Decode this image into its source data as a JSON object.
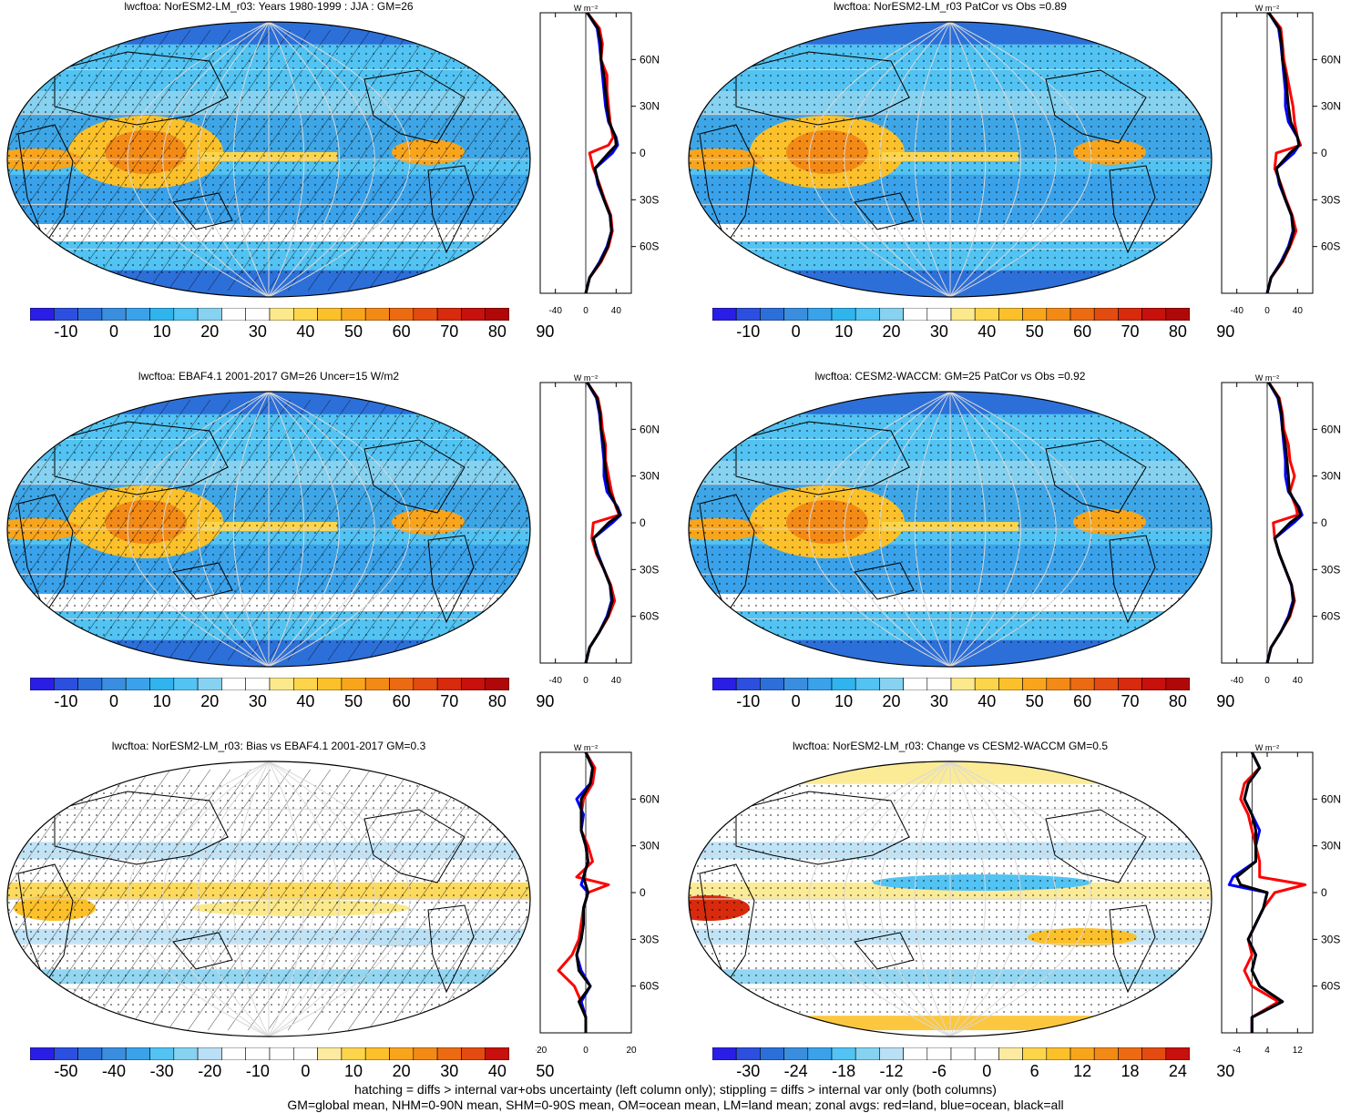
{
  "footer": {
    "line1": "hatching = diffs > internal var+obs uncertainty (left column only); stippling = diffs > internal var only (both columns)",
    "line2": "GM=global mean, NHM=0-90N mean, SHM=0-90S mean, OM=ocean mean, LM=land mean; zonal avgs: red=land, blue=ocean, black=all"
  },
  "panels": [
    {
      "title": "lwcftoa: NorESM2-LM_r03: Years 1980-1999 : JJA : GM=26",
      "kind": "abs",
      "colorbar": {
        "labels": [
          "-10",
          "0",
          "10",
          "20",
          "30",
          "40",
          "50",
          "60",
          "70",
          "80",
          "90"
        ]
      },
      "zonal": {
        "units": "W m⁻²",
        "xticks": [
          "-40",
          "0",
          "40"
        ],
        "xlim": [
          -60,
          60
        ],
        "lat_labels": [
          "60N",
          "30N",
          "0",
          "30S",
          "60S"
        ]
      }
    },
    {
      "title": "lwcftoa: NorESM2-LM_r03 PatCor vs Obs =0.89",
      "kind": "abs",
      "colorbar": {
        "labels": [
          "-10",
          "0",
          "10",
          "20",
          "30",
          "40",
          "50",
          "60",
          "70",
          "80",
          "90"
        ]
      },
      "zonal": {
        "units": "W m⁻²",
        "xticks": [
          "-40",
          "0",
          "40"
        ],
        "xlim": [
          -60,
          60
        ],
        "lat_labels": [
          "60N",
          "30N",
          "0",
          "30S",
          "60S"
        ]
      }
    },
    {
      "title": "lwcftoa: EBAF4.1 2001-2017 GM=26 Uncer=15 W/m2",
      "kind": "abs",
      "colorbar": {
        "labels": [
          "-10",
          "0",
          "10",
          "20",
          "30",
          "40",
          "50",
          "60",
          "70",
          "80",
          "90"
        ]
      },
      "zonal": {
        "units": "W m⁻²",
        "xticks": [
          "-40",
          "0",
          "40"
        ],
        "xlim": [
          -60,
          60
        ],
        "lat_labels": [
          "60N",
          "30N",
          "0",
          "30S",
          "60S"
        ]
      }
    },
    {
      "title": "lwcftoa: CESM2-WACCM: GM=25 PatCor vs Obs =0.92",
      "kind": "abs",
      "colorbar": {
        "labels": [
          "-10",
          "0",
          "10",
          "20",
          "30",
          "40",
          "50",
          "60",
          "70",
          "80",
          "90"
        ]
      },
      "zonal": {
        "units": "W m⁻²",
        "xticks": [
          "-40",
          "0",
          "40"
        ],
        "xlim": [
          -60,
          60
        ],
        "lat_labels": [
          "60N",
          "30N",
          "0",
          "30S",
          "60S"
        ]
      }
    },
    {
      "title": "lwcftoa: NorESM2-LM_r03: Bias vs EBAF4.1 2001-2017 GM=0.3",
      "kind": "diff",
      "colorbar": {
        "labels": [
          "-50",
          "-40",
          "-30",
          "-20",
          "-10",
          "0",
          "10",
          "20",
          "30",
          "40",
          "50"
        ]
      },
      "zonal": {
        "units": "W m⁻²",
        "xticks": [
          "-20",
          "0",
          "20"
        ],
        "xlim": [
          -20,
          20
        ],
        "lat_labels": [
          "60N",
          "30N",
          "0",
          "30S",
          "60S"
        ]
      }
    },
    {
      "title": "lwcftoa: NorESM2-LM_r03: Change vs CESM2-WACCM GM=0.5",
      "kind": "diff",
      "colorbar": {
        "labels": [
          "-30",
          "-24",
          "-18",
          "-12",
          "-6",
          "0",
          "6",
          "12",
          "18",
          "24",
          "30"
        ]
      },
      "zonal": {
        "units": "W m⁻²",
        "xticks": [
          "-4",
          "4",
          "12"
        ],
        "xlim": [
          -8,
          16
        ],
        "lat_labels": [
          "60N",
          "30N",
          "0",
          "30S",
          "60S"
        ]
      }
    }
  ],
  "chart_data": [
    {
      "type": "map+line",
      "title": "lwcftoa: NorESM2-LM_r03: Years 1980-1999 : JJA : GM=26",
      "zonal_lat": [
        90,
        80,
        70,
        60,
        50,
        40,
        30,
        20,
        10,
        5,
        0,
        -10,
        -20,
        -30,
        -40,
        -50,
        -60,
        -70,
        -80,
        -90
      ],
      "series": [
        {
          "name": "land",
          "color": "#ff0000",
          "values": [
            2,
            18,
            22,
            20,
            28,
            28,
            30,
            32,
            36,
            30,
            5,
            10,
            18,
            25,
            33,
            35,
            30,
            20,
            5,
            0
          ]
        },
        {
          "name": "ocean",
          "color": "#0000ff",
          "values": [
            2,
            15,
            18,
            20,
            22,
            24,
            26,
            30,
            40,
            42,
            35,
            12,
            16,
            24,
            32,
            34,
            28,
            18,
            5,
            0
          ]
        },
        {
          "name": "all",
          "color": "#000000",
          "values": [
            2,
            16,
            20,
            20,
            24,
            26,
            28,
            31,
            39,
            40,
            30,
            12,
            17,
            24,
            32,
            34,
            29,
            19,
            5,
            0
          ]
        }
      ],
      "colorbar_range": [
        -15,
        95
      ]
    },
    {
      "type": "map+line",
      "title": "lwcftoa: NorESM2-LM_r03 PatCor vs Obs =0.89",
      "zonal_lat": [
        90,
        80,
        70,
        60,
        50,
        40,
        30,
        20,
        10,
        5,
        0,
        -10,
        -20,
        -30,
        -40,
        -50,
        -60,
        -70,
        -80,
        -90
      ],
      "series": [
        {
          "name": "land",
          "color": "#ff0000",
          "values": [
            2,
            18,
            20,
            22,
            26,
            30,
            34,
            36,
            40,
            44,
            12,
            10,
            18,
            25,
            33,
            38,
            30,
            20,
            5,
            0
          ]
        },
        {
          "name": "ocean",
          "color": "#0000ff",
          "values": [
            2,
            15,
            18,
            20,
            22,
            24,
            24,
            28,
            40,
            42,
            35,
            12,
            16,
            24,
            32,
            34,
            28,
            18,
            5,
            0
          ]
        },
        {
          "name": "all",
          "color": "#000000",
          "values": [
            2,
            16,
            19,
            20,
            24,
            26,
            28,
            31,
            40,
            42,
            30,
            12,
            17,
            24,
            32,
            35,
            29,
            19,
            5,
            0
          ]
        }
      ],
      "colorbar_range": [
        -15,
        95
      ]
    },
    {
      "type": "map+line",
      "title": "lwcftoa: EBAF4.1 2001-2017 GM=26 Uncer=15 W/m2",
      "zonal_lat": [
        90,
        80,
        70,
        60,
        50,
        40,
        30,
        20,
        10,
        5,
        0,
        -10,
        -20,
        -30,
        -40,
        -50,
        -60,
        -70,
        -80,
        -90
      ],
      "series": [
        {
          "name": "land",
          "color": "#ff0000",
          "values": [
            2,
            16,
            20,
            22,
            26,
            26,
            30,
            34,
            40,
            44,
            10,
            8,
            14,
            24,
            33,
            38,
            30,
            18,
            5,
            0
          ]
        },
        {
          "name": "ocean",
          "color": "#0000ff",
          "values": [
            2,
            14,
            18,
            20,
            22,
            24,
            24,
            28,
            42,
            46,
            35,
            10,
            16,
            24,
            32,
            34,
            28,
            18,
            5,
            0
          ]
        },
        {
          "name": "all",
          "color": "#000000",
          "values": [
            2,
            15,
            19,
            20,
            24,
            25,
            27,
            31,
            41,
            45,
            30,
            10,
            15,
            24,
            32,
            35,
            29,
            18,
            5,
            0
          ]
        }
      ],
      "colorbar_range": [
        -15,
        95
      ]
    },
    {
      "type": "map+line",
      "title": "lwcftoa: CESM2-WACCM: GM=25 PatCor vs Obs =0.92",
      "zonal_lat": [
        90,
        80,
        70,
        60,
        50,
        40,
        30,
        20,
        10,
        5,
        0,
        -10,
        -20,
        -30,
        -40,
        -50,
        -60,
        -70,
        -80,
        -90
      ],
      "series": [
        {
          "name": "land",
          "color": "#ff0000",
          "values": [
            2,
            16,
            20,
            22,
            28,
            30,
            36,
            30,
            38,
            40,
            8,
            10,
            16,
            24,
            32,
            36,
            30,
            18,
            5,
            0
          ]
        },
        {
          "name": "ocean",
          "color": "#0000ff",
          "values": [
            2,
            14,
            18,
            20,
            22,
            24,
            24,
            28,
            42,
            46,
            35,
            10,
            16,
            24,
            32,
            34,
            28,
            18,
            5,
            0
          ]
        },
        {
          "name": "all",
          "color": "#000000",
          "values": [
            2,
            15,
            19,
            20,
            24,
            26,
            28,
            29,
            41,
            44,
            30,
            10,
            16,
            24,
            32,
            35,
            29,
            18,
            5,
            0
          ]
        }
      ],
      "colorbar_range": [
        -15,
        95
      ]
    },
    {
      "type": "map+line",
      "title": "lwcftoa: NorESM2-LM_r03: Bias vs EBAF4.1 2001-2017 GM=0.3",
      "zonal_lat": [
        90,
        80,
        70,
        60,
        50,
        40,
        30,
        20,
        10,
        5,
        0,
        -10,
        -20,
        -30,
        -40,
        -50,
        -60,
        -70,
        -80,
        -90
      ],
      "series": [
        {
          "name": "land",
          "color": "#ff0000",
          "values": [
            0,
            4,
            3,
            -1,
            -2,
            -2,
            1,
            3,
            -4,
            10,
            1,
            -1,
            -2,
            -3,
            -6,
            -12,
            -5,
            -2,
            0,
            0
          ]
        },
        {
          "name": "ocean",
          "color": "#0000ff",
          "values": [
            0,
            3,
            2,
            -4,
            -1,
            -2,
            0,
            1,
            -1,
            -2,
            1,
            -1,
            -1,
            -2,
            -4,
            -2,
            2,
            -2,
            0,
            0
          ]
        },
        {
          "name": "all",
          "color": "#000000",
          "values": [
            0,
            3,
            2,
            -2,
            -2,
            -2,
            0,
            1,
            -1,
            0,
            1,
            -1,
            -1,
            -2,
            -4,
            -3,
            2,
            -3,
            0,
            0
          ]
        }
      ],
      "colorbar_range": [
        -55,
        55
      ]
    },
    {
      "type": "map+line",
      "title": "lwcftoa: NorESM2-LM_r03: Change vs CESM2-WACCM GM=0.5",
      "zonal_lat": [
        90,
        80,
        70,
        60,
        50,
        40,
        30,
        20,
        10,
        5,
        0,
        -10,
        -20,
        -30,
        -40,
        -50,
        -60,
        -70,
        -80,
        -90
      ],
      "series": [
        {
          "name": "land",
          "color": "#ff0000",
          "values": [
            0,
            2,
            -2,
            -3,
            -1,
            0,
            1,
            2,
            2,
            14,
            6,
            3,
            1,
            -1,
            0,
            -2,
            0,
            7,
            0,
            0
          ]
        },
        {
          "name": "ocean",
          "color": "#0000ff",
          "values": [
            0,
            2,
            -1,
            -2,
            0,
            2,
            1,
            1,
            -5,
            -6,
            4,
            3,
            1,
            -1,
            1,
            0,
            2,
            8,
            0,
            0
          ]
        },
        {
          "name": "all",
          "color": "#000000",
          "values": [
            0,
            2,
            -1,
            -2,
            0,
            1,
            1,
            1,
            -4,
            -3,
            4,
            3,
            1,
            -1,
            1,
            0,
            2,
            8,
            0,
            0
          ]
        }
      ],
      "colorbar_range": [
        -33,
        33
      ]
    }
  ]
}
